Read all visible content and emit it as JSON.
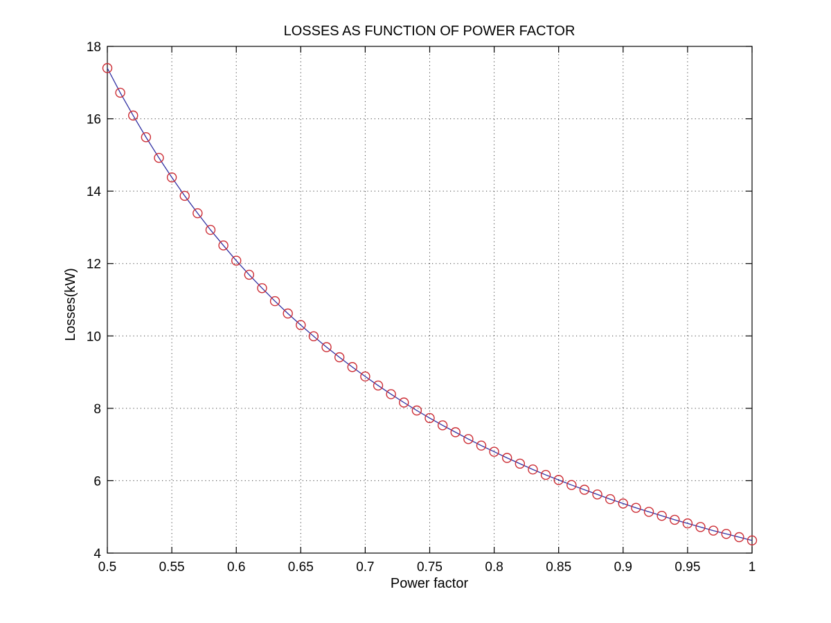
{
  "chart_data": {
    "type": "line",
    "title": "LOSSES AS FUNCTION OF POWER FACTOR",
    "xlabel": "Power factor",
    "ylabel": "Losses(kW)",
    "xlim": [
      0.5,
      1
    ],
    "ylim": [
      4,
      18
    ],
    "grid": true,
    "legend": "none",
    "line_color": "#2F2FA2",
    "marker": "open-circle",
    "marker_color": "#CC2B33",
    "x_ticks": [
      0.5,
      0.55,
      0.6,
      0.65,
      0.7,
      0.75,
      0.8,
      0.85,
      0.9,
      0.95,
      1
    ],
    "x_tick_labels": [
      "0.5",
      "0.55",
      "0.6",
      "0.65",
      "0.7",
      "0.75",
      "0.8",
      "0.85",
      "0.9",
      "0.95",
      "1"
    ],
    "y_ticks": [
      4,
      6,
      8,
      10,
      12,
      14,
      16,
      18
    ],
    "y_tick_labels": [
      "4",
      "6",
      "8",
      "10",
      "12",
      "14",
      "16",
      "18"
    ],
    "x": [
      0.5,
      0.51,
      0.52,
      0.53,
      0.54,
      0.55,
      0.56,
      0.57,
      0.58,
      0.59,
      0.6,
      0.61,
      0.62,
      0.63,
      0.64,
      0.65,
      0.66,
      0.67,
      0.68,
      0.69,
      0.7,
      0.71,
      0.72,
      0.73,
      0.74,
      0.75,
      0.76,
      0.77,
      0.78,
      0.79,
      0.8,
      0.81,
      0.82,
      0.83,
      0.84,
      0.85,
      0.86,
      0.87,
      0.88,
      0.89,
      0.9,
      0.91,
      0.92,
      0.93,
      0.94,
      0.95,
      0.96,
      0.97,
      0.98,
      0.99,
      1
    ],
    "y": [
      17.4,
      16.72,
      16.09,
      15.49,
      14.92,
      14.38,
      13.87,
      13.39,
      12.93,
      12.5,
      12.08,
      11.69,
      11.32,
      10.96,
      10.62,
      10.3,
      9.99,
      9.69,
      9.41,
      9.14,
      8.88,
      8.63,
      8.39,
      8.16,
      7.94,
      7.73,
      7.53,
      7.34,
      7.15,
      6.97,
      6.8,
      6.63,
      6.47,
      6.31,
      6.16,
      6.02,
      5.88,
      5.75,
      5.62,
      5.49,
      5.37,
      5.25,
      5.14,
      5.03,
      4.92,
      4.82,
      4.72,
      4.62,
      4.53,
      4.44,
      4.35
    ]
  }
}
